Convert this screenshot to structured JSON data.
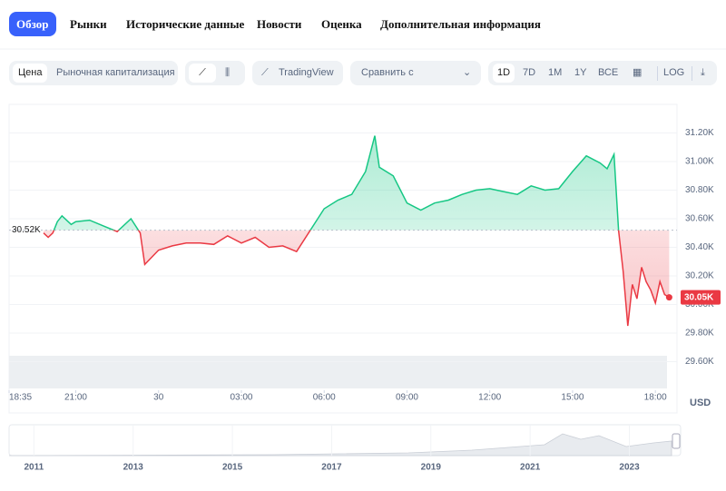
{
  "tabs": [
    "Обзор",
    "Рынки",
    "Исторические данные",
    "Новости",
    "Оценка",
    "Дополнительная информация"
  ],
  "toolbar": {
    "metric": [
      "Цена",
      "Рыночная капитализация"
    ],
    "tradingview": "TradingView",
    "compare": "Сравнить с",
    "ranges": [
      "1D",
      "7D",
      "1M",
      "1Y",
      "ВСЕ"
    ],
    "log": "LOG"
  },
  "chart_data": {
    "type": "line",
    "x": [
      "19:50",
      "20:00",
      "20:10",
      "20:20",
      "20:30",
      "20:50",
      "21:00",
      "21:30",
      "22:00",
      "22:30",
      "23:00",
      "23:20",
      "23:30",
      "00:00",
      "00:30",
      "01:00",
      "01:30",
      "02:00",
      "02:30",
      "03:00",
      "03:30",
      "04:00",
      "04:30",
      "05:00",
      "05:30",
      "06:00",
      "06:30",
      "07:00",
      "07:30",
      "07:50",
      "08:00",
      "08:30",
      "09:00",
      "09:30",
      "10:00",
      "10:30",
      "11:00",
      "11:30",
      "12:00",
      "12:30",
      "13:00",
      "13:30",
      "14:00",
      "14:30",
      "15:00",
      "15:30",
      "16:00",
      "16:15",
      "16:30",
      "16:40",
      "16:50",
      "17:00",
      "17:10",
      "17:20",
      "17:30",
      "17:40",
      "17:50",
      "18:00",
      "18:10",
      "18:20",
      "18:30"
    ],
    "values": [
      30.5,
      30.47,
      30.5,
      30.58,
      30.62,
      30.56,
      30.58,
      30.59,
      30.55,
      30.51,
      30.6,
      30.5,
      30.28,
      30.38,
      30.41,
      30.43,
      30.43,
      30.42,
      30.48,
      30.43,
      30.47,
      30.4,
      30.41,
      30.37,
      30.52,
      30.67,
      30.73,
      30.77,
      30.93,
      31.18,
      30.96,
      30.9,
      30.71,
      30.66,
      30.71,
      30.73,
      30.77,
      30.8,
      30.81,
      30.79,
      30.77,
      30.83,
      30.8,
      30.81,
      30.93,
      31.04,
      30.99,
      30.95,
      31.05,
      30.52,
      30.23,
      29.85,
      30.14,
      30.04,
      30.26,
      30.16,
      30.1,
      30.01,
      30.16,
      30.07,
      30.05
    ],
    "color_up": "#16c784",
    "color_down": "#ea3943",
    "baseline": 30.52,
    "baseline_label": "30.52K",
    "last_label": "30.05K",
    "xlim": [
      "18:35",
      "18:47"
    ],
    "xticks": [
      "18:35",
      "21:00",
      {
        "value": "00:00",
        "label": "30"
      },
      "03:00",
      "06:00",
      "09:00",
      "12:00",
      "15:00",
      "18:00"
    ],
    "ylim": [
      29.4,
      31.4
    ],
    "yticks": [
      {
        "value": 29.6,
        "label": "29.60K"
      },
      {
        "value": 29.8,
        "label": "29.80K"
      },
      {
        "value": 30.0,
        "label": "30.00K"
      },
      {
        "value": 30.2,
        "label": "30.20K"
      },
      {
        "value": 30.4,
        "label": "30.40K"
      },
      {
        "value": 30.6,
        "label": "30.60K"
      },
      {
        "value": 30.8,
        "label": "30.80K"
      },
      {
        "value": 31.0,
        "label": "31.00K"
      },
      {
        "value": 31.2,
        "label": "31.20K"
      }
    ],
    "y_unit": "USD",
    "grid": true
  },
  "navigator": {
    "xlim": [
      2010.5,
      2023.85
    ],
    "xticks": [
      2011,
      2013,
      2015,
      2017,
      2019,
      2021,
      2023
    ]
  }
}
